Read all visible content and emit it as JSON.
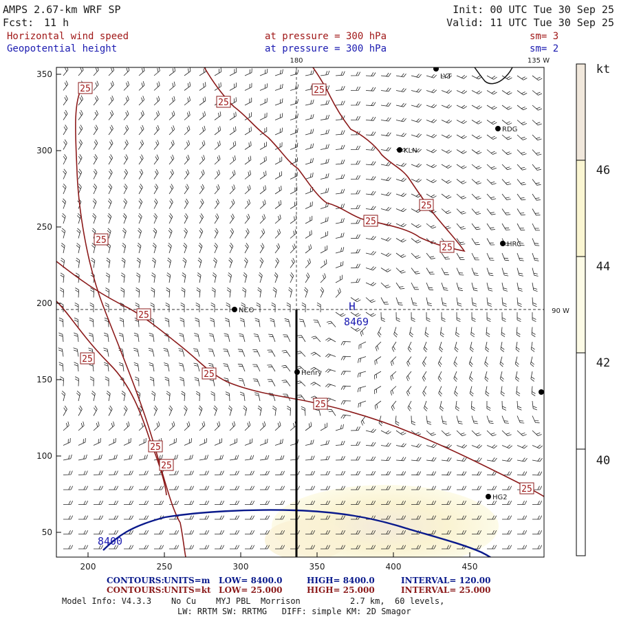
{
  "header": {
    "model_title": "AMPS 2.67-km WRF SP",
    "forecast_label": "Fcst:",
    "forecast_hours": "11 h",
    "init_time": "Init: 00 UTC Tue 30 Sep 25",
    "valid_time": "Valid: 11 UTC Tue 30 Sep 25",
    "field1_name": "Horizontal wind speed",
    "field1_level": "at pressure =  300 hPa",
    "field1_sm": "sm= 3",
    "field2_name": "Geopotential height",
    "field2_level": "at pressure =  300 hPa",
    "field2_sm": "sm= 2"
  },
  "map": {
    "lon_180_label": "180",
    "lon_135w_label": "135 W",
    "lat_90w_label": "90 W",
    "high_symbol": "H",
    "high_value": "8469",
    "height_contour_label": "8400",
    "x_ticks": [
      "200",
      "250",
      "300",
      "350",
      "400",
      "450"
    ],
    "y_ticks": [
      "50",
      "100",
      "150",
      "200",
      "250",
      "300",
      "350"
    ],
    "speed_contour_label": "25",
    "stations": [
      "LYT",
      "RDG",
      "KLN",
      "HRC",
      "NCO",
      "Henry",
      "HG2"
    ]
  },
  "colorbar": {
    "unit": "kt",
    "labels": [
      "46",
      "44",
      "42",
      "40"
    ],
    "colors": [
      "#f1e8dc",
      "#fbf6d2",
      "#fdfbe6",
      "#ffffff"
    ]
  },
  "footer": {
    "contours_label": "CONTOURS:",
    "height_units": "UNITS=m",
    "height_low": "LOW=  8400.0",
    "height_high": "HIGH=  8400.0",
    "height_interval": "INTERVAL=   120.00",
    "speed_units": "UNITS=kt",
    "speed_low": "LOW=  25.000",
    "speed_high": "HIGH=  25.000",
    "speed_interval": "INTERVAL=   25.000",
    "model_info": "Model Info: V4.3.3    No Cu    MYJ PBL  Morrison          2.7 km,  60 levels,",
    "physics_info": "LW: RRTM SW: RRTMG   DIFF: simple KM: 2D Smagor"
  },
  "colors": {
    "height_contour": "#0a1a8c",
    "speed_contour": "#8b1a1a",
    "barb": "#222222",
    "label_red": "#a01818",
    "label_blue": "#1a1ab0"
  }
}
